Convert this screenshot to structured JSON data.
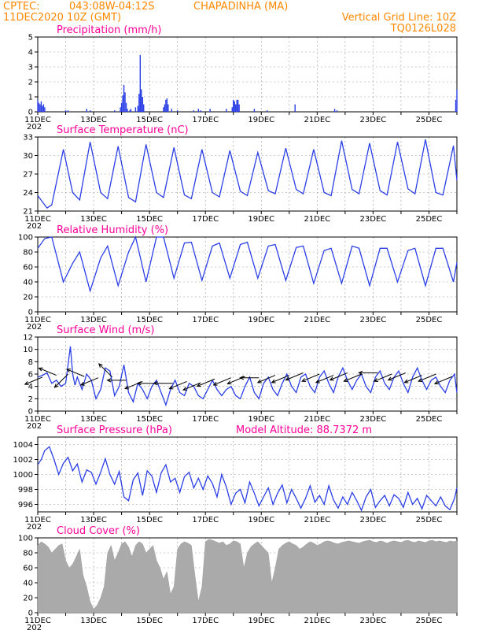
{
  "header": {
    "source": "CPTEC:",
    "coordinates": "043:08W-04:12S",
    "station": "CHAPADINHA (MA)",
    "init_time": "11DEC2020 10Z (GMT)",
    "grid_note": "Vertical Grid Line: 10Z",
    "model_code": "TQ0126L028"
  },
  "colors": {
    "header": "#ff8800",
    "panel_title": "#ff0099",
    "series": "#2b3fe6",
    "cloud": "#aaaaaa",
    "arrow": "#000000"
  },
  "date_ticks": [
    "11DEC",
    "13DEC",
    "15DEC",
    "17DEC",
    "19DEC",
    "21DEC",
    "23DEC",
    "25DEC"
  ],
  "year_clip": "202",
  "chart_data": [
    {
      "id": "precip",
      "type": "bar",
      "title": "Precipitation (mm/h)",
      "ylim": [
        0,
        5
      ],
      "yticks": [
        0,
        1,
        2,
        3,
        4,
        5
      ],
      "x_unit": "hours since 11DEC 10Z",
      "points": [
        [
          0,
          0.8
        ],
        [
          1,
          0.6
        ],
        [
          2,
          0.5
        ],
        [
          3,
          0.7
        ],
        [
          4,
          0.4
        ],
        [
          5,
          0.5
        ],
        [
          6,
          0.3
        ],
        [
          24,
          0.1
        ],
        [
          26,
          0.1
        ],
        [
          42,
          0.2
        ],
        [
          45,
          0.1
        ],
        [
          66,
          0.1
        ],
        [
          71,
          0.3
        ],
        [
          72,
          0.6
        ],
        [
          73,
          1.1
        ],
        [
          74,
          1.8
        ],
        [
          75,
          1.3
        ],
        [
          76,
          0.6
        ],
        [
          77,
          0.2
        ],
        [
          79,
          0.1
        ],
        [
          80,
          0.2
        ],
        [
          84,
          0.3
        ],
        [
          86,
          0.4
        ],
        [
          87,
          1.2
        ],
        [
          88,
          3.8
        ],
        [
          89,
          1.5
        ],
        [
          90,
          1.0
        ],
        [
          91,
          0.5
        ],
        [
          108,
          0.3
        ],
        [
          109,
          0.5
        ],
        [
          110,
          0.8
        ],
        [
          111,
          0.9
        ],
        [
          112,
          0.5
        ],
        [
          115,
          0.2
        ],
        [
          120,
          0.1
        ],
        [
          134,
          0.1
        ],
        [
          138,
          0.2
        ],
        [
          140,
          0.1
        ],
        [
          148,
          0.2
        ],
        [
          162,
          0.2
        ],
        [
          167,
          0.3
        ],
        [
          168,
          0.8
        ],
        [
          169,
          0.7
        ],
        [
          170,
          0.5
        ],
        [
          171,
          0.8
        ],
        [
          172,
          0.8
        ],
        [
          173,
          0.5
        ],
        [
          186,
          0.2
        ],
        [
          197,
          0.1
        ],
        [
          221,
          0.5
        ],
        [
          255,
          0.2
        ],
        [
          257,
          0.1
        ],
        [
          359,
          0.8
        ],
        [
          360,
          1.5
        ]
      ]
    },
    {
      "id": "temperature",
      "type": "line",
      "title": "Surface Temperature (nC)",
      "ylim": [
        21,
        33
      ],
      "yticks": [
        21,
        24,
        27,
        30,
        33
      ],
      "x_unit": "hours since 11DEC 10Z",
      "x": [
        0,
        8,
        12,
        22,
        30,
        36,
        45,
        54,
        60,
        69,
        78,
        84,
        93,
        102,
        108,
        117,
        126,
        132,
        141,
        150,
        156,
        165,
        174,
        180,
        189,
        198,
        204,
        213,
        222,
        228,
        237,
        246,
        252,
        261,
        270,
        276,
        285,
        294,
        300,
        309,
        318,
        324,
        333,
        342,
        348,
        357,
        360
      ],
      "y": [
        23.5,
        21.5,
        22.0,
        31.0,
        24.0,
        22.8,
        32.2,
        24.0,
        23.0,
        31.5,
        23.2,
        22.5,
        31.8,
        24.0,
        23.2,
        31.3,
        23.6,
        23.0,
        31.0,
        24.0,
        23.3,
        30.8,
        24.2,
        23.5,
        30.5,
        24.3,
        23.8,
        31.2,
        24.5,
        23.8,
        31.0,
        24.0,
        23.5,
        32.4,
        24.5,
        23.8,
        32.0,
        24.3,
        23.6,
        32.2,
        24.6,
        23.8,
        32.6,
        24.0,
        23.6,
        31.6,
        26.0
      ]
    },
    {
      "id": "humidity",
      "type": "line",
      "title": "Relative Humidity (%)",
      "ylim": [
        0,
        100
      ],
      "yticks": [
        0,
        20,
        40,
        60,
        80,
        100
      ],
      "x_unit": "hours since 11DEC 10Z",
      "x": [
        0,
        6,
        12,
        22,
        30,
        36,
        45,
        54,
        60,
        69,
        78,
        84,
        93,
        102,
        108,
        117,
        126,
        132,
        141,
        150,
        156,
        165,
        174,
        180,
        189,
        198,
        204,
        213,
        222,
        228,
        237,
        246,
        252,
        261,
        270,
        276,
        285,
        294,
        300,
        309,
        318,
        324,
        333,
        342,
        348,
        357,
        360
      ],
      "y": [
        85,
        98,
        100,
        40,
        65,
        80,
        28,
        72,
        88,
        35,
        80,
        100,
        40,
        100,
        100,
        45,
        92,
        93,
        42,
        88,
        92,
        45,
        90,
        93,
        45,
        88,
        90,
        42,
        86,
        88,
        38,
        82,
        85,
        38,
        88,
        85,
        35,
        85,
        85,
        40,
        82,
        85,
        35,
        85,
        85,
        40,
        66
      ]
    },
    {
      "id": "wind",
      "type": "line",
      "title": "Surface Wind (m/s)",
      "ylim": [
        0,
        12
      ],
      "yticks": [
        0,
        2,
        4,
        6,
        8,
        10,
        12
      ],
      "x_unit": "hours since 11DEC 10Z",
      "x": [
        0,
        4,
        8,
        12,
        16,
        20,
        24,
        26,
        28,
        30,
        32,
        34,
        38,
        42,
        46,
        50,
        54,
        58,
        62,
        66,
        70,
        74,
        78,
        82,
        86,
        90,
        94,
        98,
        102,
        106,
        110,
        114,
        118,
        122,
        126,
        130,
        134,
        138,
        142,
        146,
        150,
        154,
        158,
        162,
        166,
        170,
        174,
        178,
        182,
        186,
        190,
        194,
        198,
        202,
        206,
        210,
        214,
        218,
        222,
        226,
        230,
        234,
        238,
        242,
        246,
        250,
        254,
        258,
        262,
        266,
        270,
        274,
        278,
        282,
        286,
        290,
        294,
        298,
        302,
        306,
        310,
        314,
        318,
        322,
        326,
        330,
        334,
        338,
        342,
        346,
        350,
        354,
        358,
        360
      ],
      "y": [
        5.5,
        5.8,
        6.2,
        4.5,
        5.0,
        4.0,
        4.5,
        7.5,
        10.5,
        6.0,
        4.2,
        5.5,
        3.5,
        6.0,
        5.0,
        2.0,
        3.5,
        7.0,
        6.5,
        2.5,
        4.0,
        7.5,
        3.0,
        1.5,
        4.5,
        3.5,
        2.0,
        4.0,
        5.0,
        3.0,
        1.0,
        3.5,
        5.0,
        3.0,
        2.5,
        4.5,
        4.0,
        2.5,
        2.0,
        3.5,
        5.0,
        3.5,
        2.5,
        3.5,
        4.0,
        2.5,
        2.0,
        4.0,
        5.5,
        3.0,
        2.0,
        4.5,
        5.5,
        3.5,
        2.5,
        4.5,
        6.0,
        4.0,
        3.0,
        5.5,
        6.0,
        4.0,
        3.0,
        5.5,
        6.5,
        4.5,
        3.0,
        5.5,
        7.0,
        5.0,
        3.5,
        5.0,
        6.0,
        4.0,
        3.0,
        5.5,
        6.5,
        4.5,
        3.5,
        5.5,
        6.5,
        4.5,
        3.0,
        5.5,
        7.0,
        5.0,
        3.5,
        5.0,
        5.5,
        4.0,
        3.0,
        5.0,
        6.0,
        3.0
      ],
      "vectors": [
        {
          "x": 4,
          "speed": 5.5,
          "dir": "ENE"
        },
        {
          "x": 16,
          "speed": 5.8,
          "dir": "ESE"
        },
        {
          "x": 26,
          "speed": 6.0,
          "dir": "NE"
        },
        {
          "x": 40,
          "speed": 5.6,
          "dir": "ESE"
        },
        {
          "x": 52,
          "speed": 5.4,
          "dir": "ENE"
        },
        {
          "x": 64,
          "speed": 5.5,
          "dir": "SE"
        },
        {
          "x": 76,
          "speed": 5.0,
          "dir": "E"
        },
        {
          "x": 90,
          "speed": 4.8,
          "dir": "ENE"
        },
        {
          "x": 102,
          "speed": 4.5,
          "dir": "E"
        },
        {
          "x": 116,
          "speed": 4.5,
          "dir": "E"
        },
        {
          "x": 128,
          "speed": 4.8,
          "dir": "ENE"
        },
        {
          "x": 140,
          "speed": 4.6,
          "dir": "ENE"
        },
        {
          "x": 152,
          "speed": 5.2,
          "dir": "ENE"
        },
        {
          "x": 166,
          "speed": 5.4,
          "dir": "ENE"
        },
        {
          "x": 178,
          "speed": 5.6,
          "dir": "ENE"
        },
        {
          "x": 190,
          "speed": 5.4,
          "dir": "E"
        },
        {
          "x": 204,
          "speed": 5.8,
          "dir": "ENE"
        },
        {
          "x": 216,
          "speed": 5.8,
          "dir": "ENE"
        },
        {
          "x": 228,
          "speed": 6.2,
          "dir": "ENE"
        },
        {
          "x": 242,
          "speed": 6.0,
          "dir": "ENE"
        },
        {
          "x": 254,
          "speed": 5.8,
          "dir": "ENE"
        },
        {
          "x": 266,
          "speed": 6.2,
          "dir": "ENE"
        },
        {
          "x": 278,
          "speed": 6.0,
          "dir": "ENE"
        },
        {
          "x": 292,
          "speed": 6.2,
          "dir": "E"
        },
        {
          "x": 304,
          "speed": 6.0,
          "dir": "ENE"
        },
        {
          "x": 316,
          "speed": 6.2,
          "dir": "ENE"
        },
        {
          "x": 330,
          "speed": 5.8,
          "dir": "ENE"
        },
        {
          "x": 342,
          "speed": 6.0,
          "dir": "ENE"
        },
        {
          "x": 356,
          "speed": 5.6,
          "dir": "ENE"
        }
      ]
    },
    {
      "id": "pressure",
      "type": "line",
      "title": "Surface Pressure (hPa)",
      "annotation": "Model Altitude: 88.7372 m",
      "ylim": [
        995,
        1005
      ],
      "yticks": [
        996,
        998,
        1000,
        1002,
        1004
      ],
      "x_unit": "hours since 11DEC 10Z",
      "x": [
        0,
        3,
        6,
        10,
        14,
        18,
        22,
        26,
        30,
        34,
        38,
        42,
        46,
        50,
        54,
        58,
        62,
        66,
        70,
        74,
        78,
        82,
        86,
        90,
        94,
        98,
        102,
        106,
        110,
        114,
        118,
        122,
        126,
        130,
        134,
        138,
        142,
        146,
        150,
        154,
        158,
        162,
        166,
        170,
        174,
        178,
        182,
        186,
        190,
        194,
        198,
        202,
        206,
        210,
        214,
        218,
        222,
        226,
        230,
        234,
        238,
        242,
        246,
        250,
        254,
        258,
        262,
        266,
        270,
        274,
        278,
        282,
        286,
        290,
        294,
        298,
        302,
        306,
        310,
        314,
        318,
        322,
        326,
        330,
        334,
        338,
        342,
        346,
        350,
        354,
        358,
        360
      ],
      "y": [
        1001.3,
        1002.0,
        1003.2,
        1003.7,
        1002.0,
        1000.0,
        1001.5,
        1002.3,
        1000.5,
        1001.4,
        999.0,
        1000.6,
        1000.3,
        998.7,
        1000.3,
        1002.1,
        1000.0,
        998.7,
        1000.4,
        997.0,
        996.5,
        999.3,
        1000.2,
        997.2,
        1000.5,
        999.8,
        997.6,
        1000.2,
        1001.3,
        999.0,
        999.5,
        997.6,
        999.7,
        1000.3,
        998.2,
        999.5,
        998.0,
        999.8,
        998.8,
        997.0,
        1000.0,
        998.3,
        996.0,
        997.5,
        998.0,
        996.2,
        999.0,
        997.5,
        995.8,
        997.0,
        998.2,
        996.0,
        997.5,
        998.6,
        996.2,
        998.0,
        996.8,
        995.5,
        996.8,
        998.5,
        996.3,
        997.2,
        996.0,
        998.5,
        996.6,
        995.5,
        997.0,
        996.0,
        997.6,
        996.5,
        995.2,
        997.0,
        998.0,
        995.6,
        996.5,
        997.2,
        995.8,
        997.3,
        996.8,
        995.6,
        997.6,
        996.0,
        996.8,
        995.4,
        997.2,
        996.5,
        995.8,
        997.0,
        995.8,
        995.3,
        996.8,
        998.2
      ]
    },
    {
      "id": "cloud",
      "type": "area",
      "title": "Cloud Cover (%)",
      "ylim": [
        0,
        100
      ],
      "yticks": [
        0,
        20,
        40,
        60,
        80,
        100
      ],
      "x_unit": "hours since 11DEC 10Z",
      "x": [
        0,
        3,
        6,
        9,
        12,
        15,
        18,
        21,
        24,
        27,
        30,
        33,
        36,
        39,
        42,
        45,
        48,
        51,
        54,
        57,
        60,
        63,
        66,
        69,
        72,
        75,
        78,
        81,
        84,
        87,
        90,
        93,
        96,
        99,
        102,
        105,
        108,
        111,
        114,
        117,
        120,
        123,
        126,
        129,
        132,
        135,
        138,
        141,
        144,
        147,
        150,
        153,
        156,
        159,
        162,
        165,
        168,
        171,
        174,
        177,
        180,
        183,
        186,
        189,
        192,
        195,
        198,
        201,
        204,
        207,
        210,
        213,
        216,
        219,
        222,
        225,
        228,
        231,
        234,
        237,
        240,
        243,
        246,
        249,
        252,
        255,
        258,
        261,
        264,
        267,
        270,
        273,
        276,
        279,
        282,
        285,
        288,
        291,
        294,
        297,
        300,
        303,
        306,
        309,
        312,
        315,
        318,
        321,
        324,
        327,
        330,
        333,
        336,
        339,
        342,
        345,
        348,
        351,
        354,
        357,
        360
      ],
      "y": [
        90,
        95,
        92,
        88,
        80,
        85,
        90,
        92,
        70,
        60,
        65,
        75,
        85,
        50,
        35,
        15,
        5,
        10,
        20,
        35,
        80,
        90,
        70,
        80,
        92,
        95,
        88,
        75,
        90,
        95,
        92,
        80,
        85,
        90,
        70,
        60,
        45,
        55,
        25,
        35,
        85,
        92,
        95,
        93,
        90,
        50,
        15,
        35,
        95,
        98,
        97,
        95,
        93,
        95,
        90,
        92,
        96,
        95,
        92,
        60,
        80,
        88,
        92,
        95,
        90,
        85,
        80,
        40,
        60,
        85,
        90,
        93,
        95,
        92,
        90,
        85,
        88,
        92,
        95,
        93,
        90,
        92,
        95,
        96,
        95,
        93,
        92,
        94,
        95,
        96,
        95,
        94,
        93,
        95,
        96,
        97,
        95,
        94,
        96,
        95,
        93,
        95,
        96,
        95,
        94,
        96,
        97,
        95,
        94,
        96,
        95,
        94,
        96,
        97,
        95,
        96,
        95,
        94,
        96,
        95,
        96
      ]
    }
  ]
}
